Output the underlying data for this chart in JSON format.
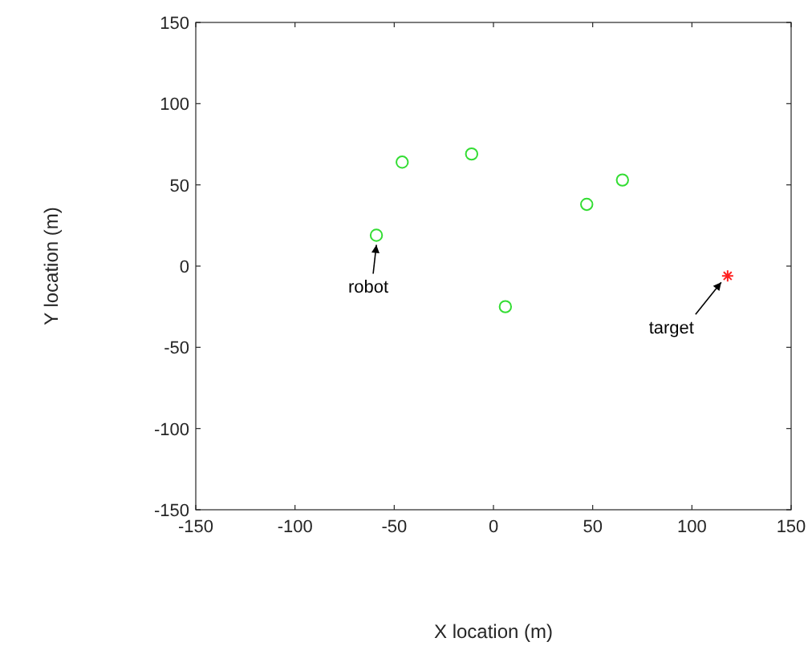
{
  "chart_data": {
    "type": "scatter",
    "xlabel": "X location (m)",
    "ylabel": "Y location (m)",
    "xlim": [
      -150,
      150
    ],
    "xticks": [
      -150,
      -100,
      -50,
      0,
      50,
      100,
      150
    ],
    "ylim": [
      -150,
      150
    ],
    "yticks": [
      -150,
      -100,
      -50,
      0,
      50,
      100,
      150
    ],
    "grid": false,
    "series": [
      {
        "color": "#33dd33",
        "marker": "circle",
        "x": [
          -59,
          -46,
          -11,
          6,
          47,
          65
        ],
        "values": [
          19,
          64,
          69,
          -25,
          38,
          53
        ]
      },
      {
        "color": "#ff2020",
        "marker": "cross",
        "x": [
          118
        ],
        "values": [
          -6
        ]
      }
    ],
    "annotations": [
      {
        "text": "robot",
        "x": -59,
        "y": 19
      },
      {
        "text": "target",
        "x": 118,
        "y": -6
      }
    ]
  }
}
